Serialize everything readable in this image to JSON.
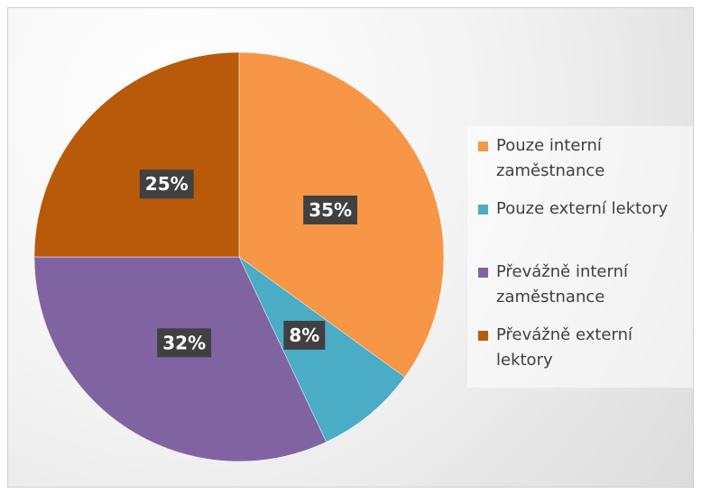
{
  "chart_data": {
    "type": "pie",
    "categories": [
      "Pouze interní zaměstnance",
      "Pouze externí lektory",
      "Převážně interní zaměstnance",
      "Převážně externí lektory"
    ],
    "values": [
      35,
      8,
      32,
      25
    ],
    "value_labels": [
      "35%",
      "8%",
      "32%",
      "25%"
    ],
    "colors": [
      "#f79646",
      "#4bacc6",
      "#8064a2",
      "#b85a0a"
    ],
    "legend": "right"
  }
}
